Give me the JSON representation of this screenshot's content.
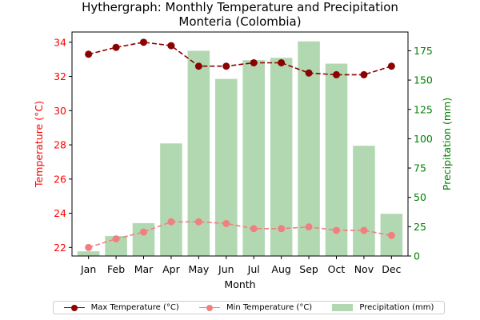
{
  "chart_data": {
    "type": "bar+line",
    "title_line1": "Hythergraph: Monthly Temperature and Precipitation",
    "title_line2": "Monteria (Colombia)",
    "xlabel": "Month",
    "ylabel_left": "Temperature (°C)",
    "ylabel_right": "Precipitation (mm)",
    "categories": [
      "Jan",
      "Feb",
      "Mar",
      "Apr",
      "May",
      "Jun",
      "Jul",
      "Aug",
      "Sep",
      "Oct",
      "Nov",
      "Dec"
    ],
    "ylim_left": [
      21.5,
      34.6
    ],
    "ylim_right": [
      0,
      191
    ],
    "yticks_left": [
      22,
      24,
      26,
      28,
      30,
      32,
      34
    ],
    "yticks_right": [
      0,
      25,
      50,
      75,
      100,
      125,
      150,
      175
    ],
    "series": [
      {
        "name": "Max Temperature (°C)",
        "axis": "left",
        "kind": "line",
        "color": "#8b0000",
        "linestyle": "dashed",
        "values": [
          33.3,
          33.7,
          34.0,
          33.8,
          32.6,
          32.6,
          32.8,
          32.8,
          32.2,
          32.1,
          32.1,
          32.6
        ]
      },
      {
        "name": "Min Temperature (°C)",
        "axis": "left",
        "kind": "line",
        "color": "#f08080",
        "linestyle": "dashed",
        "values": [
          22.0,
          22.5,
          22.9,
          23.5,
          23.5,
          23.4,
          23.1,
          23.1,
          23.2,
          23.0,
          23.0,
          22.7
        ]
      },
      {
        "name": "Precipitation (mm)",
        "axis": "right",
        "kind": "bar",
        "color": "#b2d8b2",
        "values": [
          4,
          17,
          28,
          96,
          175,
          151,
          167,
          169,
          183,
          164,
          94,
          36
        ]
      }
    ],
    "legend_position": "bottom-center",
    "grid": false
  },
  "colors": {
    "left_axis": "#ff0000",
    "right_axis": "#008000"
  }
}
